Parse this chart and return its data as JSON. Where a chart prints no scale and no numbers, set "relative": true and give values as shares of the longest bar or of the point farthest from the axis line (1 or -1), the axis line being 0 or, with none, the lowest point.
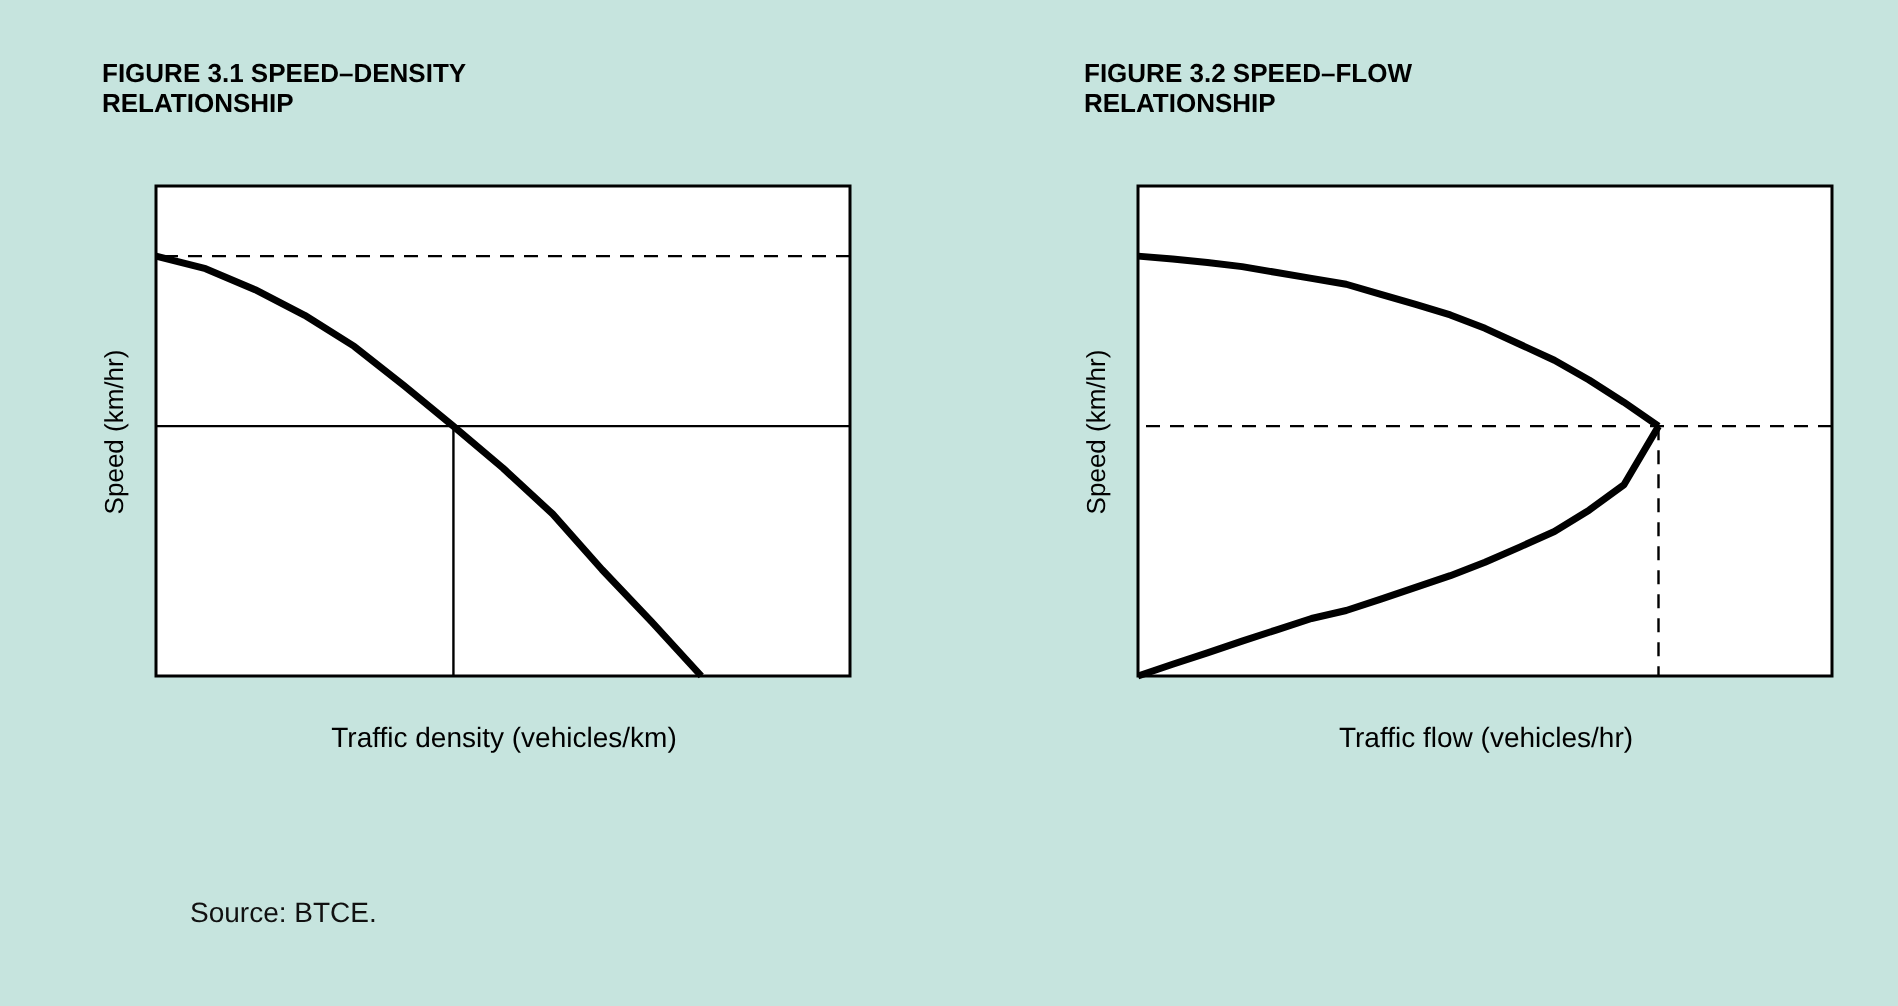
{
  "chart_data": [
    {
      "type": "line",
      "title": "FIGURE 3.1 SPEED–DENSITY RELATIONSHIP",
      "xlabel": "Traffic density (vehicles/km)",
      "ylabel": "Speed (km/hr)",
      "relative": true,
      "categories": [
        null,
        null,
        null,
        null,
        null,
        null,
        null,
        null,
        null,
        null,
        null,
        null,
        null,
        null,
        null
      ],
      "series": [
        {
          "color": "#000000",
          "values": [
            1,
            0.97,
            0.92,
            0.859,
            0.785,
            0.692,
            0.595,
            0.495,
            0.386,
            0.253,
            0.129,
            0,
            null,
            null,
            null
          ]
        }
      ],
      "ref_lines": [
        {
          "axis": "y",
          "value": 1,
          "line_style": "dashed"
        },
        {
          "axis": "y",
          "value": 0.595,
          "line_style": "solid"
        }
      ],
      "annotations": [
        "Source: BTCE."
      ]
    },
    {
      "type": "line",
      "title": "FIGURE 3.2 SPEED–FLOW RELATIONSHIP",
      "xlabel": "Traffic flow (vehicles/hr)",
      "ylabel": "Speed (km/hr)",
      "relative": true,
      "categories": [
        null,
        null,
        null,
        null,
        null,
        null,
        null,
        null,
        null,
        null,
        null,
        null,
        null,
        null,
        null,
        null,
        null,
        null,
        null,
        null,
        null
      ],
      "series": [
        {
          "color": "#000000",
          "values": [
            1,
            0.993,
            0.985,
            0.975,
            0.961,
            0.947,
            0.933,
            0.909,
            0.885,
            0.86,
            0.828,
            0.79,
            0.752,
            0.705,
            0.652,
            0.595,
            null,
            null,
            null,
            null,
            null
          ]
        },
        {
          "color": "#000000",
          "values": [
            0,
            0.028,
            0.055,
            0.083,
            0.11,
            0.137,
            0.156,
            0.183,
            0.211,
            0.239,
            0.271,
            0.307,
            0.344,
            0.395,
            0.455,
            0.595,
            null,
            null,
            null,
            null,
            null
          ]
        }
      ],
      "ref_lines": [
        {
          "axis": "y",
          "value": 0.595,
          "line_style": "dashed"
        }
      ]
    }
  ]
}
